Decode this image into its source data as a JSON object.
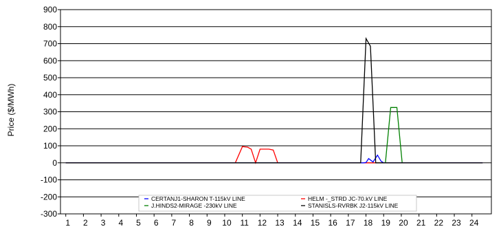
{
  "chart_data": {
    "type": "line",
    "ylabel": "Price ($/MWh)",
    "xlabel": "",
    "title": "",
    "ylim": [
      -300,
      900
    ],
    "yticks": [
      -300,
      -200,
      -100,
      0,
      100,
      200,
      300,
      400,
      500,
      600,
      700,
      800,
      900
    ],
    "xlim": [
      0.7,
      25.1
    ],
    "xticks": [
      1,
      2,
      3,
      4,
      5,
      6,
      7,
      8,
      9,
      10,
      11,
      12,
      13,
      14,
      15,
      16,
      17,
      18,
      19,
      20,
      21,
      22,
      23,
      24
    ],
    "grid": "horizontal",
    "legend_position": "bottom-center",
    "series": [
      {
        "name": "CERTANJ1-SHARON T-115kV LINE",
        "color": "#0000ff",
        "points": [
          [
            1,
            0
          ],
          [
            17.85,
            0
          ],
          [
            18.0,
            2
          ],
          [
            18.15,
            25
          ],
          [
            18.4,
            5
          ],
          [
            18.65,
            45
          ],
          [
            18.85,
            10
          ],
          [
            19.0,
            0
          ],
          [
            24.6,
            0
          ]
        ]
      },
      {
        "name": "HELM     -_STRD JC-70.kV LINE",
        "color": "#ff0000",
        "points": [
          [
            1,
            0
          ],
          [
            10.6,
            0
          ],
          [
            11.0,
            95
          ],
          [
            11.3,
            92
          ],
          [
            11.5,
            80
          ],
          [
            11.75,
            0
          ],
          [
            12.0,
            80
          ],
          [
            12.5,
            80
          ],
          [
            12.75,
            75
          ],
          [
            13.0,
            0
          ],
          [
            24.6,
            0
          ]
        ]
      },
      {
        "name": "J.HINDS2-MIRAGE  -230kV LINE",
        "color": "#008000",
        "points": [
          [
            1,
            0
          ],
          [
            19.1,
            0
          ],
          [
            19.4,
            325
          ],
          [
            19.75,
            325
          ],
          [
            20.05,
            0
          ],
          [
            24.6,
            0
          ]
        ]
      },
      {
        "name": "STANISLS-RVRBK J2-115kV LINE",
        "color": "#000000",
        "points": [
          [
            1,
            0
          ],
          [
            17.7,
            0
          ],
          [
            18.0,
            730
          ],
          [
            18.25,
            685
          ],
          [
            18.55,
            0
          ],
          [
            24.6,
            0
          ]
        ]
      }
    ]
  }
}
